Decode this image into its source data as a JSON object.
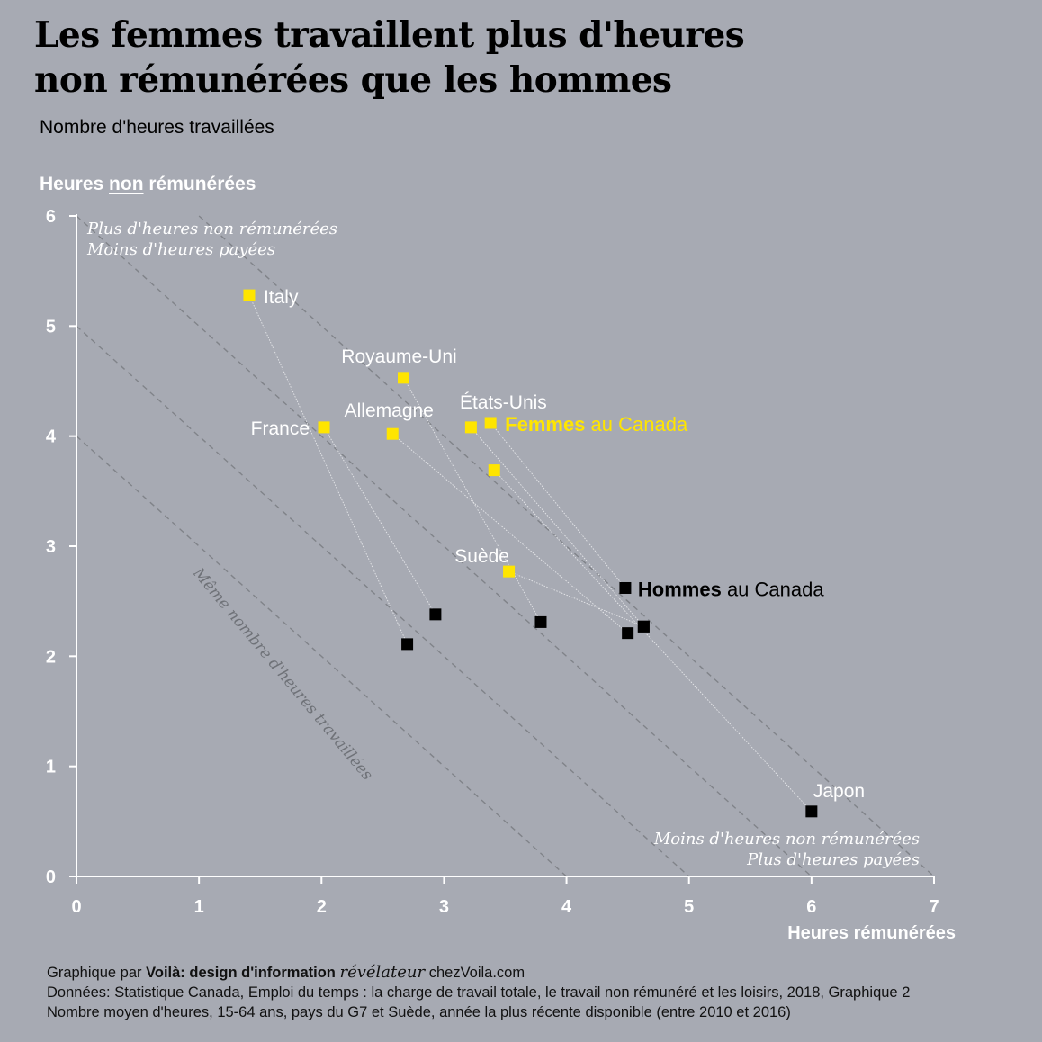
{
  "title_line1": "Les femmes travaillent plus d'heures",
  "title_line2": "non rémunérées que les hommes",
  "subtitle": "Nombre d'heures travaillées",
  "chart_data": {
    "type": "scatter",
    "ylabel_pre": "Heures ",
    "ylabel_underlined": "non",
    "ylabel_post": " rémunérées",
    "xlabel": "Heures rémunérées",
    "xlim": [
      0,
      7
    ],
    "ylim": [
      0,
      6
    ],
    "x_ticks": [
      "0",
      "1",
      "2",
      "3",
      "4",
      "5",
      "6",
      "7"
    ],
    "y_ticks": [
      "0",
      "1",
      "2",
      "3",
      "4",
      "5",
      "6"
    ],
    "reference_lines_total_hours": [
      4,
      5,
      6,
      7
    ],
    "reference_line_label": "Même nombre d'heures travaillées",
    "corner_note_top": [
      "Plus d'heures non rémunérées",
      "Moins d'heures payées"
    ],
    "corner_note_bottom": [
      "Moins d'heures non rémunérées",
      "Plus d'heures payées"
    ],
    "women_color": "#ffe500",
    "men_color": "#000000",
    "countries": [
      {
        "label": "Italy",
        "women": [
          1.41,
          5.28
        ],
        "men": [
          2.7,
          2.11
        ]
      },
      {
        "label": "Royaume-Uni",
        "women": [
          2.67,
          4.53
        ],
        "men": [
          3.79,
          2.31
        ]
      },
      {
        "label": "France",
        "women": [
          2.02,
          4.08
        ],
        "men": [
          2.93,
          2.38
        ]
      },
      {
        "label": "Allemagne",
        "women": [
          2.58,
          4.02
        ],
        "men": [
          4.5,
          2.21
        ]
      },
      {
        "label": "États-Unis",
        "women": [
          3.22,
          4.08
        ],
        "men": [
          4.63,
          2.27
        ]
      },
      {
        "label": "",
        "women": [
          3.38,
          4.12
        ],
        "men": [
          4.48,
          2.62
        ]
      },
      {
        "label": "",
        "women": [
          3.41,
          3.69
        ],
        "men": [
          6.0,
          0.59
        ]
      },
      {
        "label": "Suède",
        "women": [
          3.53,
          2.77
        ],
        "men": [
          4.63,
          2.27
        ]
      }
    ],
    "callout_women_bold": "Femmes",
    "callout_women_rest": " au Canada",
    "callout_men_bold": "Hommes",
    "callout_men_rest": " au Canada",
    "japan_label": "Japon"
  },
  "source_prefix": "Graphique par ",
  "source_brand": "Voilà: design d'information",
  "source_reveal": "révélateur",
  "source_site": "chezVoila.com",
  "source_line2": "Données: Statistique Canada, Emploi du temps : la charge de travail totale, le travail non rémunéré et les loisirs, 2018, Graphique 2",
  "source_line3": "Nombre moyen d'heures, 15-64 ans, pays du G7 et Suède, année la plus récente disponible (entre 2010 et 2016)"
}
